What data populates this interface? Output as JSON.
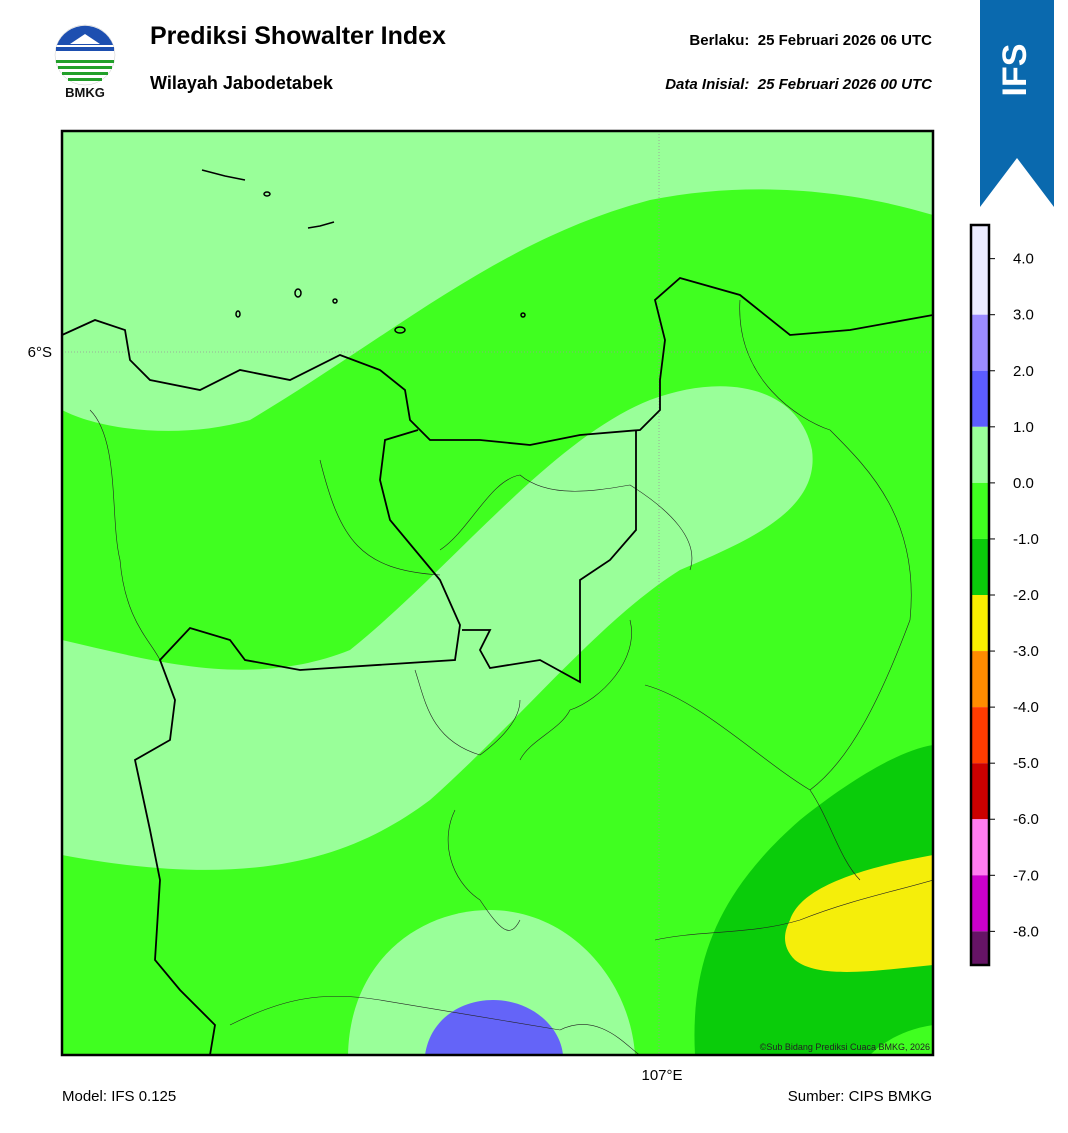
{
  "header": {
    "title": "Prediksi Showalter Index",
    "subtitle": "Wilayah Jabodetabek",
    "valid": "Berlaku:  25 Februari 2026 06 UTC",
    "initial": "Data Inisial:  25 Februari 2026 00 UTC",
    "logo_text": "BMKG"
  },
  "badge": "IFS",
  "colorbar": {
    "lim": [
      -8.6,
      4.6
    ],
    "ticks": [
      {
        "value": 4,
        "label": "4.0"
      },
      {
        "value": 3,
        "label": "3.0"
      },
      {
        "value": 2,
        "label": "2.0"
      },
      {
        "value": 1,
        "label": "1.0"
      },
      {
        "value": 0,
        "label": "0.0"
      },
      {
        "value": -1,
        "label": "-1.0"
      },
      {
        "value": -2,
        "label": "-2.0"
      },
      {
        "value": -3,
        "label": "-3.0"
      },
      {
        "value": -4,
        "label": "-4.0"
      },
      {
        "value": -5,
        "label": "-5.0"
      },
      {
        "value": -6,
        "label": "-6.0"
      },
      {
        "value": -7,
        "label": "-7.0"
      },
      {
        "value": -8,
        "label": "-8.0"
      }
    ],
    "colors": [
      "#ececff",
      "#9c8cff",
      "#5c5cff",
      "#99ff99",
      "#40ff20",
      "#0acc0a",
      "#f8ee00",
      "#ff8c00",
      "#ff3c00",
      "#cc0000",
      "#ff7cf0",
      "#cc00cc",
      "#661466"
    ]
  },
  "map": {
    "lat_label": "6°S",
    "lon_label": "107°E",
    "credit": "©Sub Bidang Prediksi Cuaca BMKG, 2026"
  },
  "footer": {
    "model": "Model: IFS 0.125",
    "source": "Sumber: CIPS BMKG"
  }
}
